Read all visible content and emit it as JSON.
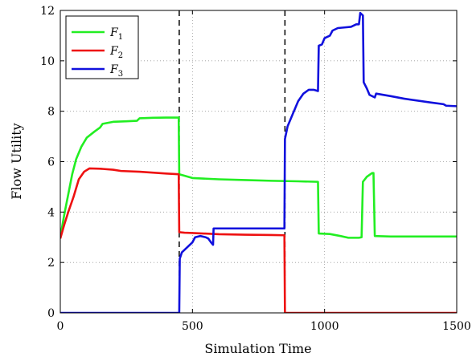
{
  "chart_data": {
    "type": "line",
    "xlabel": "Simulation Time",
    "ylabel": "Flow Utility",
    "xlim": [
      0,
      1500
    ],
    "ylim": [
      0,
      12
    ],
    "xticks": [
      0,
      500,
      1000,
      1500
    ],
    "yticks": [
      0,
      2,
      4,
      6,
      8,
      10,
      12
    ],
    "grid": "dotted",
    "legend_position": "top-left",
    "vlines": [
      450,
      850
    ],
    "series": [
      {
        "name": "F1",
        "color": "#22ee22",
        "points": [
          [
            0,
            3.0
          ],
          [
            15,
            3.9
          ],
          [
            30,
            4.7
          ],
          [
            45,
            5.5
          ],
          [
            60,
            6.1
          ],
          [
            80,
            6.6
          ],
          [
            100,
            6.95
          ],
          [
            130,
            7.2
          ],
          [
            150,
            7.35
          ],
          [
            160,
            7.5
          ],
          [
            200,
            7.58
          ],
          [
            250,
            7.6
          ],
          [
            290,
            7.62
          ],
          [
            300,
            7.72
          ],
          [
            350,
            7.74
          ],
          [
            400,
            7.75
          ],
          [
            448,
            7.75
          ],
          [
            450,
            5.5
          ],
          [
            460,
            5.47
          ],
          [
            500,
            5.35
          ],
          [
            600,
            5.3
          ],
          [
            700,
            5.27
          ],
          [
            800,
            5.24
          ],
          [
            900,
            5.22
          ],
          [
            975,
            5.2
          ],
          [
            978,
            3.15
          ],
          [
            1020,
            3.13
          ],
          [
            1060,
            3.05
          ],
          [
            1090,
            2.98
          ],
          [
            1130,
            2.98
          ],
          [
            1140,
            3.0
          ],
          [
            1145,
            5.2
          ],
          [
            1160,
            5.4
          ],
          [
            1180,
            5.55
          ],
          [
            1185,
            5.55
          ],
          [
            1190,
            3.05
          ],
          [
            1250,
            3.03
          ],
          [
            1400,
            3.03
          ],
          [
            1500,
            3.03
          ]
        ]
      },
      {
        "name": "F2",
        "color": "#ee1111",
        "points": [
          [
            0,
            2.95
          ],
          [
            15,
            3.5
          ],
          [
            30,
            4.0
          ],
          [
            50,
            4.6
          ],
          [
            70,
            5.3
          ],
          [
            90,
            5.6
          ],
          [
            110,
            5.73
          ],
          [
            150,
            5.72
          ],
          [
            200,
            5.68
          ],
          [
            230,
            5.63
          ],
          [
            300,
            5.6
          ],
          [
            400,
            5.53
          ],
          [
            448,
            5.5
          ],
          [
            450,
            3.2
          ],
          [
            470,
            3.18
          ],
          [
            500,
            3.17
          ],
          [
            600,
            3.12
          ],
          [
            700,
            3.1
          ],
          [
            800,
            3.09
          ],
          [
            848,
            3.08
          ],
          [
            850,
            0
          ],
          [
            1000,
            0
          ],
          [
            1500,
            0
          ]
        ]
      },
      {
        "name": "F3",
        "color": "#1111dd",
        "points": [
          [
            0,
            0
          ],
          [
            445,
            0
          ],
          [
            450,
            0
          ],
          [
            452,
            2.15
          ],
          [
            460,
            2.4
          ],
          [
            480,
            2.6
          ],
          [
            500,
            2.8
          ],
          [
            510,
            3.0
          ],
          [
            530,
            3.05
          ],
          [
            550,
            3.0
          ],
          [
            560,
            2.95
          ],
          [
            570,
            2.8
          ],
          [
            578,
            2.7
          ],
          [
            580,
            3.35
          ],
          [
            650,
            3.35
          ],
          [
            750,
            3.35
          ],
          [
            848,
            3.35
          ],
          [
            850,
            6.9
          ],
          [
            860,
            7.4
          ],
          [
            880,
            7.9
          ],
          [
            900,
            8.4
          ],
          [
            920,
            8.7
          ],
          [
            940,
            8.85
          ],
          [
            960,
            8.85
          ],
          [
            975,
            8.8
          ],
          [
            978,
            10.6
          ],
          [
            990,
            10.65
          ],
          [
            1000,
            10.9
          ],
          [
            1020,
            11.0
          ],
          [
            1030,
            11.2
          ],
          [
            1050,
            11.3
          ],
          [
            1070,
            11.32
          ],
          [
            1100,
            11.35
          ],
          [
            1120,
            11.45
          ],
          [
            1130,
            11.45
          ],
          [
            1135,
            11.9
          ],
          [
            1145,
            11.8
          ],
          [
            1148,
            9.15
          ],
          [
            1160,
            8.9
          ],
          [
            1170,
            8.65
          ],
          [
            1190,
            8.55
          ],
          [
            1195,
            8.7
          ],
          [
            1250,
            8.6
          ],
          [
            1300,
            8.5
          ],
          [
            1400,
            8.35
          ],
          [
            1450,
            8.28
          ],
          [
            1460,
            8.22
          ],
          [
            1500,
            8.2
          ]
        ]
      }
    ]
  }
}
